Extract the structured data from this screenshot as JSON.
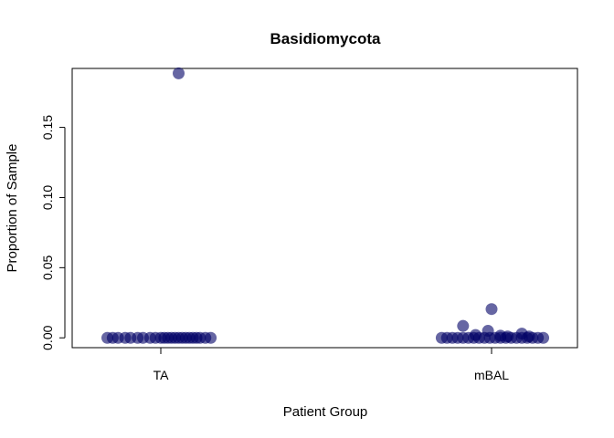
{
  "chart_data": {
    "type": "scatter",
    "title": "Basidiomycota",
    "xlabel": "Patient Group",
    "ylabel": "Proportion of Sample",
    "categories": [
      "TA",
      "mBAL"
    ],
    "ylim": [
      -0.007,
      0.192
    ],
    "yticks": [
      0.0,
      0.05,
      0.1,
      0.15
    ],
    "ytick_labels": [
      "0.00",
      "0.05",
      "0.10",
      "0.15"
    ],
    "point_color": "#000066",
    "point_alpha": 0.6,
    "grid": false,
    "legend": "none",
    "series": [
      {
        "category": "TA",
        "points": [
          {
            "jitter": -0.3,
            "y": 0.0
          },
          {
            "jitter": -0.27,
            "y": 0.0
          },
          {
            "jitter": -0.24,
            "y": 0.0
          },
          {
            "jitter": -0.2,
            "y": 0.0
          },
          {
            "jitter": -0.17,
            "y": 0.0
          },
          {
            "jitter": -0.13,
            "y": 0.0
          },
          {
            "jitter": -0.1,
            "y": 0.0
          },
          {
            "jitter": -0.06,
            "y": 0.0
          },
          {
            "jitter": -0.03,
            "y": 0.0
          },
          {
            "jitter": 0.0,
            "y": 0.0
          },
          {
            "jitter": 0.02,
            "y": 0.0
          },
          {
            "jitter": 0.04,
            "y": 0.0
          },
          {
            "jitter": 0.06,
            "y": 0.0
          },
          {
            "jitter": 0.08,
            "y": 0.0
          },
          {
            "jitter": 0.1,
            "y": 0.0
          },
          {
            "jitter": 0.12,
            "y": 0.0
          },
          {
            "jitter": 0.14,
            "y": 0.0
          },
          {
            "jitter": 0.16,
            "y": 0.0
          },
          {
            "jitter": 0.18,
            "y": 0.0
          },
          {
            "jitter": 0.2,
            "y": 0.0
          },
          {
            "jitter": 0.22,
            "y": 0.0
          },
          {
            "jitter": 0.25,
            "y": 0.0
          },
          {
            "jitter": 0.28,
            "y": 0.0
          },
          {
            "jitter": 0.1,
            "y": 0.1885
          }
        ]
      },
      {
        "category": "mBAL",
        "points": [
          {
            "jitter": -0.28,
            "y": 0.0
          },
          {
            "jitter": -0.25,
            "y": 0.0
          },
          {
            "jitter": -0.22,
            "y": 0.0
          },
          {
            "jitter": -0.19,
            "y": 0.0
          },
          {
            "jitter": -0.16,
            "y": 0.0
          },
          {
            "jitter": -0.13,
            "y": 0.0
          },
          {
            "jitter": -0.1,
            "y": 0.0
          },
          {
            "jitter": -0.07,
            "y": 0.0
          },
          {
            "jitter": -0.04,
            "y": 0.0
          },
          {
            "jitter": -0.01,
            "y": 0.0
          },
          {
            "jitter": 0.02,
            "y": 0.0
          },
          {
            "jitter": 0.05,
            "y": 0.0
          },
          {
            "jitter": 0.08,
            "y": 0.0
          },
          {
            "jitter": 0.11,
            "y": 0.0
          },
          {
            "jitter": 0.14,
            "y": 0.0
          },
          {
            "jitter": 0.17,
            "y": 0.0
          },
          {
            "jitter": 0.2,
            "y": 0.0
          },
          {
            "jitter": 0.23,
            "y": 0.0
          },
          {
            "jitter": 0.26,
            "y": 0.0
          },
          {
            "jitter": 0.29,
            "y": 0.0
          },
          {
            "jitter": -0.16,
            "y": 0.0085
          },
          {
            "jitter": -0.09,
            "y": 0.002
          },
          {
            "jitter": -0.02,
            "y": 0.005
          },
          {
            "jitter": 0.0,
            "y": 0.0205
          },
          {
            "jitter": 0.05,
            "y": 0.0015
          },
          {
            "jitter": 0.09,
            "y": 0.001
          },
          {
            "jitter": 0.17,
            "y": 0.003
          },
          {
            "jitter": 0.21,
            "y": 0.001
          }
        ]
      }
    ]
  }
}
